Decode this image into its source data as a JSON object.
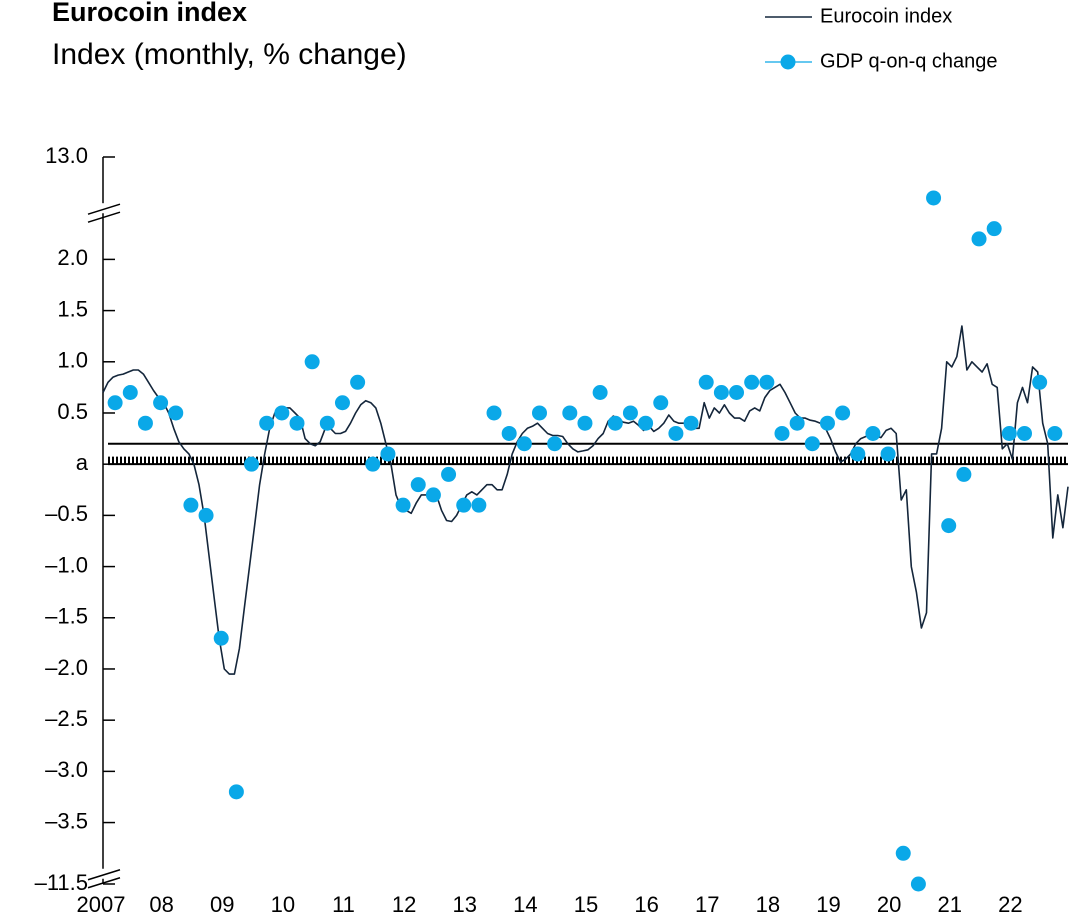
{
  "chart_data": {
    "type": "line",
    "title": "Eurocoin index",
    "subtitle": "Index (monthly, % change)",
    "legend": "top-right",
    "xlim": [
      2007,
      2023
    ],
    "xticks": [
      2007,
      {
        "value": 2008,
        "label": "08"
      },
      {
        "value": 2009,
        "label": "09"
      },
      {
        "value": 2010,
        "label": "10"
      },
      {
        "value": 2011,
        "label": "11"
      },
      {
        "value": 2012,
        "label": "12"
      },
      {
        "value": 2013,
        "label": "13"
      },
      {
        "value": 2014,
        "label": "14"
      },
      {
        "value": 2015,
        "label": "15"
      },
      {
        "value": 2016,
        "label": "16"
      },
      {
        "value": 2017,
        "label": "17"
      },
      {
        "value": 2018,
        "label": "18"
      },
      {
        "value": 2019,
        "label": "19"
      },
      {
        "value": 2020,
        "label": "20"
      },
      {
        "value": 2021,
        "label": "21"
      },
      {
        "value": 2022,
        "label": "22"
      }
    ],
    "ylim": [
      -11.5,
      13.0
    ],
    "y_breaks": [
      [
        -11.4,
        -4.0
      ],
      [
        2.5,
        12.5
      ]
    ],
    "yticks": [
      {
        "value": -11.5,
        "label": "–11.5"
      },
      {
        "value": -3.5,
        "label": "–3.5"
      },
      {
        "value": -3.0,
        "label": "–3.0"
      },
      {
        "value": -2.5,
        "label": "–2.5"
      },
      {
        "value": -2.0,
        "label": "–2.0"
      },
      {
        "value": -1.5,
        "label": "–1.5"
      },
      {
        "value": -1.0,
        "label": "–1.0"
      },
      {
        "value": -0.5,
        "label": "–0.5"
      },
      {
        "value": 0,
        "label": "a"
      },
      {
        "value": 0.5,
        "label": "0.5"
      },
      {
        "value": 1.0,
        "label": "1.0"
      },
      {
        "value": 1.5,
        "label": "1.5"
      },
      {
        "value": 2.0,
        "label": "2.0"
      },
      {
        "value": 13.0,
        "label": "13.0"
      }
    ],
    "reference_line": 0.2,
    "series": [
      {
        "name": "Eurocoin index",
        "type": "line",
        "color": "#14263b",
        "x": [
          2007,
          2007.083,
          2007.167,
          2007.25,
          2007.333,
          2007.417,
          2007.5,
          2007.583,
          2007.667,
          2007.75,
          2007.833,
          2007.917,
          2008,
          2008.083,
          2008.167,
          2008.25,
          2008.333,
          2008.417,
          2008.5,
          2008.583,
          2008.667,
          2008.75,
          2008.833,
          2008.917,
          2009,
          2009.083,
          2009.167,
          2009.25,
          2009.333,
          2009.417,
          2009.5,
          2009.583,
          2009.667,
          2009.75,
          2009.833,
          2009.917,
          2010,
          2010.083,
          2010.167,
          2010.25,
          2010.333,
          2010.417,
          2010.5,
          2010.583,
          2010.667,
          2010.75,
          2010.833,
          2010.917,
          2011,
          2011.083,
          2011.167,
          2011.25,
          2011.333,
          2011.417,
          2011.5,
          2011.583,
          2011.667,
          2011.75,
          2011.833,
          2011.917,
          2012,
          2012.083,
          2012.167,
          2012.25,
          2012.333,
          2012.417,
          2012.5,
          2012.583,
          2012.667,
          2012.75,
          2012.833,
          2012.917,
          2013,
          2013.083,
          2013.167,
          2013.25,
          2013.333,
          2013.417,
          2013.5,
          2013.583,
          2013.667,
          2013.75,
          2013.833,
          2013.917,
          2014,
          2014.083,
          2014.167,
          2014.25,
          2014.333,
          2014.417,
          2014.5,
          2014.583,
          2014.667,
          2014.75,
          2014.833,
          2014.917,
          2015,
          2015.083,
          2015.167,
          2015.25,
          2015.333,
          2015.417,
          2015.5,
          2015.583,
          2015.667,
          2015.75,
          2015.833,
          2015.917,
          2016,
          2016.083,
          2016.167,
          2016.25,
          2016.333,
          2016.417,
          2016.5,
          2016.583,
          2016.667,
          2016.75,
          2016.833,
          2016.917,
          2017,
          2017.083,
          2017.167,
          2017.25,
          2017.333,
          2017.417,
          2017.5,
          2017.583,
          2017.667,
          2017.75,
          2017.833,
          2017.917,
          2018,
          2018.083,
          2018.167,
          2018.25,
          2018.333,
          2018.417,
          2018.5,
          2018.583,
          2018.667,
          2018.75,
          2018.833,
          2018.917,
          2019,
          2019.083,
          2019.167,
          2019.25,
          2019.333,
          2019.417,
          2019.5,
          2019.583,
          2019.667,
          2019.75,
          2019.833,
          2019.917,
          2020,
          2020.083,
          2020.167,
          2020.25,
          2020.333,
          2020.417,
          2020.5,
          2020.583,
          2020.667,
          2020.75,
          2020.833,
          2020.917,
          2021,
          2021.083,
          2021.167,
          2021.25,
          2021.333,
          2021.417,
          2021.5,
          2021.583,
          2021.667,
          2021.75,
          2021.833,
          2021.917,
          2022,
          2022.083,
          2022.167,
          2022.25,
          2022.333,
          2022.417,
          2022.5,
          2022.583,
          2022.667,
          2022.75,
          2022.833,
          2022.917
        ],
        "values": [
          0.7,
          0.8,
          0.85,
          0.87,
          0.88,
          0.9,
          0.92,
          0.92,
          0.88,
          0.8,
          0.72,
          0.65,
          0.6,
          0.5,
          0.35,
          0.22,
          0.15,
          0.1,
          0.0,
          -0.2,
          -0.5,
          -0.9,
          -1.3,
          -1.7,
          -2.0,
          -2.05,
          -2.05,
          -1.8,
          -1.4,
          -1.0,
          -0.6,
          -0.2,
          0.1,
          0.35,
          0.5,
          0.55,
          0.55,
          0.55,
          0.5,
          0.45,
          0.25,
          0.2,
          0.18,
          0.22,
          0.35,
          0.35,
          0.3,
          0.3,
          0.32,
          0.4,
          0.5,
          0.58,
          0.62,
          0.6,
          0.55,
          0.4,
          0.2,
          0.0,
          -0.3,
          -0.42,
          -0.45,
          -0.48,
          -0.38,
          -0.3,
          -0.3,
          -0.25,
          -0.3,
          -0.45,
          -0.55,
          -0.56,
          -0.5,
          -0.4,
          -0.3,
          -0.27,
          -0.3,
          -0.25,
          -0.2,
          -0.2,
          -0.25,
          -0.25,
          -0.1,
          0.1,
          0.22,
          0.3,
          0.35,
          0.37,
          0.4,
          0.35,
          0.3,
          0.28,
          0.28,
          0.27,
          0.2,
          0.15,
          0.12,
          0.13,
          0.14,
          0.18,
          0.25,
          0.3,
          0.42,
          0.47,
          0.44,
          0.41,
          0.4,
          0.42,
          0.38,
          0.33,
          0.38,
          0.32,
          0.35,
          0.4,
          0.48,
          0.42,
          0.4,
          0.4,
          0.38,
          0.35,
          0.35,
          0.6,
          0.45,
          0.55,
          0.5,
          0.58,
          0.5,
          0.45,
          0.45,
          0.42,
          0.52,
          0.55,
          0.52,
          0.65,
          0.72,
          0.75,
          0.78,
          0.7,
          0.6,
          0.5,
          0.45,
          0.45,
          0.43,
          0.42,
          0.4,
          0.35,
          0.25,
          0.12,
          0.02,
          0.05,
          0.1,
          0.2,
          0.25,
          0.27,
          0.28,
          0.28,
          0.26,
          0.33,
          0.35,
          0.3,
          -0.35,
          -0.25,
          -1.0,
          -1.25,
          -1.6,
          -1.45,
          0.1,
          0.1,
          0.35,
          1.0,
          0.95,
          1.05,
          1.35,
          0.92,
          1.0,
          0.95,
          0.9,
          0.98,
          0.78,
          0.75,
          0.15,
          0.2,
          0.05,
          0.6,
          0.75,
          0.6,
          0.95,
          0.9,
          0.4,
          0.2,
          -0.72,
          -0.3,
          -0.62,
          -0.22
        ]
      },
      {
        "name": "GDP q-on-q change",
        "type": "scatter",
        "color": "#0aa8e8",
        "x": [
          2007.2,
          2007.45,
          2007.7,
          2007.95,
          2008.2,
          2008.45,
          2008.7,
          2008.95,
          2009.2,
          2009.45,
          2009.7,
          2009.95,
          2010.2,
          2010.45,
          2010.7,
          2010.95,
          2011.2,
          2011.45,
          2011.7,
          2011.95,
          2012.2,
          2012.45,
          2012.7,
          2012.95,
          2013.2,
          2013.45,
          2013.7,
          2013.95,
          2014.2,
          2014.45,
          2014.7,
          2014.95,
          2015.2,
          2015.45,
          2015.7,
          2015.95,
          2016.2,
          2016.45,
          2016.7,
          2016.95,
          2017.2,
          2017.45,
          2017.7,
          2017.95,
          2018.2,
          2018.45,
          2018.7,
          2018.95,
          2019.2,
          2019.45,
          2019.7,
          2019.95,
          2020.2,
          2020.45,
          2020.7,
          2020.95,
          2021.2,
          2021.45,
          2021.7,
          2021.95,
          2022.2,
          2022.45,
          2022.7
        ],
        "values": [
          0.6,
          0.7,
          0.4,
          0.6,
          0.5,
          -0.4,
          -0.5,
          -1.7,
          -3.2,
          0.0,
          0.4,
          0.5,
          0.4,
          1.0,
          0.4,
          0.6,
          0.8,
          0.0,
          0.1,
          -0.4,
          -0.2,
          -0.3,
          -0.1,
          -0.4,
          -0.4,
          0.5,
          0.3,
          0.2,
          0.5,
          0.2,
          0.5,
          0.4,
          0.7,
          0.4,
          0.5,
          0.4,
          0.6,
          0.3,
          0.4,
          0.8,
          0.7,
          0.7,
          0.8,
          0.8,
          0.3,
          0.4,
          0.2,
          0.4,
          0.5,
          0.1,
          0.3,
          0.1,
          -3.8,
          -11.5,
          12.6,
          -0.6,
          -0.1,
          2.2,
          2.3,
          0.3,
          0.3,
          0.8,
          0.3
        ]
      }
    ]
  }
}
